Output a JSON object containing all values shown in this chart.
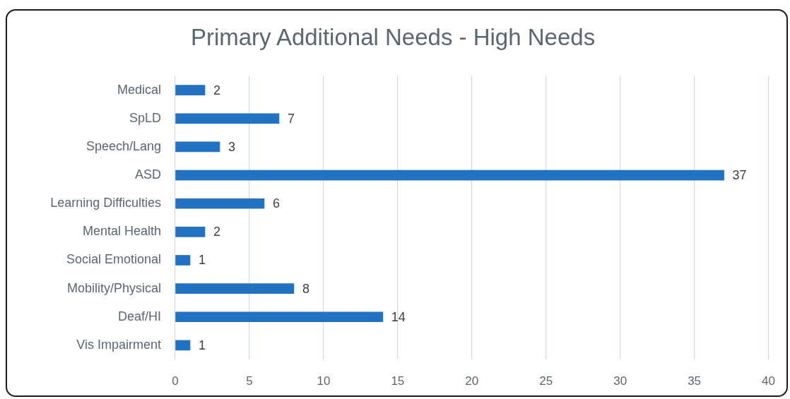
{
  "chart_data": {
    "type": "bar",
    "orientation": "horizontal",
    "title": "Primary Additional Needs - High Needs",
    "categories": [
      "Medical",
      "SpLD",
      "Speech/Lang",
      "ASD",
      "Learning Difficulties",
      "Mental Health",
      "Social Emotional",
      "Mobility/Physical",
      "Deaf/HI",
      "Vis Impairment"
    ],
    "values": [
      2,
      7,
      3,
      37,
      6,
      2,
      1,
      8,
      14,
      1
    ],
    "color": "#2272c3",
    "xlim": [
      0,
      40
    ],
    "xticks": [
      0,
      5,
      10,
      15,
      20,
      25,
      30,
      35,
      40
    ],
    "grid": "x",
    "data_labels": true
  }
}
